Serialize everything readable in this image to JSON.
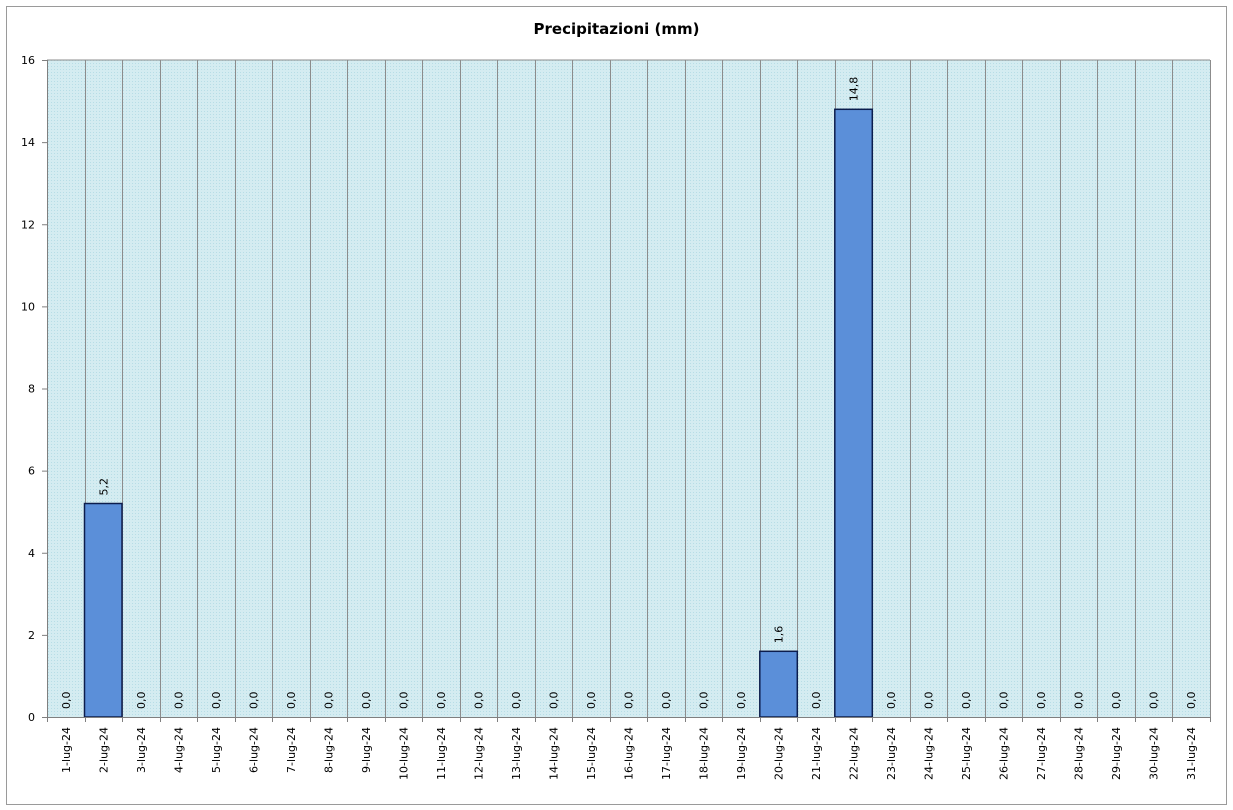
{
  "chart_data": {
    "type": "bar",
    "title": "Precipitazioni  (mm)",
    "xlabel": "",
    "ylabel": "",
    "ylim": [
      0,
      16
    ],
    "yticks": [
      "0",
      "2",
      "4",
      "6",
      "8",
      "10",
      "12",
      "14",
      "16"
    ],
    "grid": true,
    "categories": [
      "1-lug-24",
      "2-lug-24",
      "3-lug-24",
      "4-lug-24",
      "5-lug-24",
      "6-lug-24",
      "7-lug-24",
      "8-lug-24",
      "9-lug-24",
      "10-lug-24",
      "11-lug-24",
      "12-lug-24",
      "13-lug-24",
      "14-lug-24",
      "15-lug-24",
      "16-lug-24",
      "17-lug-24",
      "18-lug-24",
      "19-lug-24",
      "20-lug-24",
      "21-lug-24",
      "22-lug-24",
      "23-lug-24",
      "24-lug-24",
      "25-lug-24",
      "26-lug-24",
      "27-lug-24",
      "28-lug-24",
      "29-lug-24",
      "30-lug-24",
      "31-lug-24"
    ],
    "values": [
      0,
      5.2,
      0,
      0,
      0,
      0,
      0,
      0,
      0,
      0,
      0,
      0,
      0,
      0,
      0,
      0,
      0,
      0,
      0,
      1.6,
      0,
      14.8,
      0,
      0,
      0,
      0,
      0,
      0,
      0,
      0,
      0
    ],
    "data_labels": [
      "0,0",
      "5,2",
      "0,0",
      "0,0",
      "0,0",
      "0,0",
      "0,0",
      "0,0",
      "0,0",
      "0,0",
      "0,0",
      "0,0",
      "0,0",
      "0,0",
      "0,0",
      "0,0",
      "0,0",
      "0,0",
      "0,0",
      "1,6",
      "0,0",
      "14,8",
      "0,0",
      "0,0",
      "0,0",
      "0,0",
      "0,0",
      "0,0",
      "0,0",
      "0,0",
      "0,0"
    ],
    "colors": {
      "bar_fill": "#5b8fd9",
      "bar_stroke": "#0c1d4d",
      "plot_background": "#d4ecf1",
      "plot_pattern_dot": "#b7dde6",
      "gridline": "#8c8c8c",
      "axis": "#7f7f7f"
    }
  }
}
